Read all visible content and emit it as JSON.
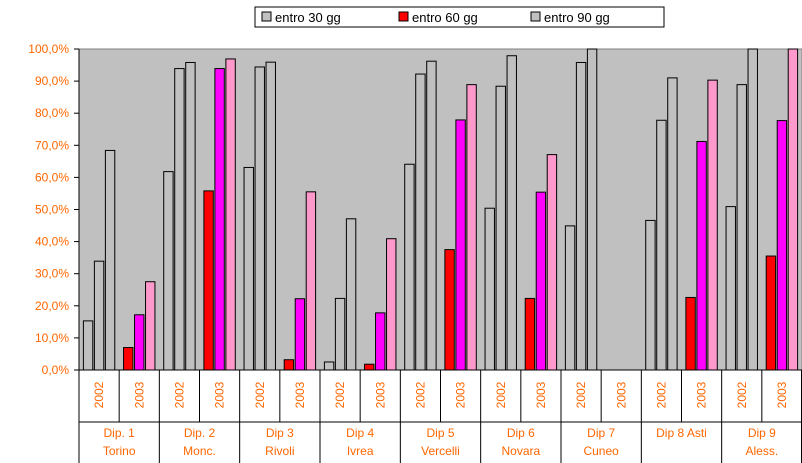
{
  "chart_data": {
    "type": "bar",
    "title": "",
    "xlabel": "",
    "ylabel": "",
    "ylim": [
      0,
      100
    ],
    "ytick_labels": [
      "0,0%",
      "10,0%",
      "20,0%",
      "30,0%",
      "40,0%",
      "50,0%",
      "60,0%",
      "70,0%",
      "80,0%",
      "90,0%",
      "100,0%"
    ],
    "grid": false,
    "legend_position": "top",
    "plot_background": "#c0c0c0",
    "series": [
      {
        "name": "entro 30 gg",
        "color": "#c0c0c0"
      },
      {
        "name": "entro 60 gg",
        "color": "#ff0000"
      },
      {
        "name": "entro 90 gg",
        "color": "#c0c0c0"
      }
    ],
    "series_colors_2003": [
      "#ff0000",
      "#ff00ff",
      "#ff99cc"
    ],
    "groups": [
      {
        "label_line1": "Dip. 1",
        "label_line2": "Torino",
        "years": [
          {
            "year": "2002",
            "values": [
              15.3,
              33.9,
              68.4
            ]
          },
          {
            "year": "2003",
            "values": [
              7.0,
              17.2,
              27.5
            ]
          }
        ]
      },
      {
        "label_line1": "Dip. 2",
        "label_line2": "Monc.",
        "years": [
          {
            "year": "2002",
            "values": [
              61.8,
              93.9,
              95.8
            ]
          },
          {
            "year": "2003",
            "values": [
              55.8,
              93.9,
              96.9
            ]
          }
        ]
      },
      {
        "label_line1": "Dip 3",
        "label_line2": "Rivoli",
        "years": [
          {
            "year": "2002",
            "values": [
              63.1,
              94.4,
              95.9
            ]
          },
          {
            "year": "2003",
            "values": [
              3.2,
              22.2,
              55.5
            ]
          }
        ]
      },
      {
        "label_line1": "Dip 4",
        "label_line2": "Ivrea",
        "years": [
          {
            "year": "2002",
            "values": [
              2.5,
              22.3,
              47.1
            ]
          },
          {
            "year": "2003",
            "values": [
              1.8,
              17.8,
              40.9
            ]
          }
        ]
      },
      {
        "label_line1": "Dip 5",
        "label_line2": "Vercelli",
        "years": [
          {
            "year": "2002",
            "values": [
              64.1,
              92.2,
              96.2
            ]
          },
          {
            "year": "2003",
            "values": [
              37.5,
              77.9,
              88.9
            ]
          }
        ]
      },
      {
        "label_line1": "Dip 6",
        "label_line2": "Novara",
        "years": [
          {
            "year": "2002",
            "values": [
              50.4,
              88.4,
              97.9
            ]
          },
          {
            "year": "2003",
            "values": [
              22.3,
              55.4,
              67.1
            ]
          }
        ]
      },
      {
        "label_line1": "Dip 7",
        "label_line2": "Cuneo",
        "years": [
          {
            "year": "2002",
            "values": [
              44.9,
              95.8,
              100.0
            ]
          },
          {
            "year": "2003",
            "values": [
              0,
              0,
              0
            ]
          }
        ]
      },
      {
        "label_line1": "Dip 8 Asti",
        "label_line2": "",
        "years": [
          {
            "year": "2002",
            "values": [
              46.6,
              77.8,
              91.0
            ]
          },
          {
            "year": "2003",
            "values": [
              22.6,
              71.2,
              90.3
            ]
          }
        ]
      },
      {
        "label_line1": "Dip 9",
        "label_line2": "Aless.",
        "years": [
          {
            "year": "2002",
            "values": [
              50.9,
              88.9,
              100.0
            ]
          },
          {
            "year": "2003",
            "values": [
              35.5,
              77.7,
              100.0
            ]
          }
        ]
      }
    ]
  }
}
